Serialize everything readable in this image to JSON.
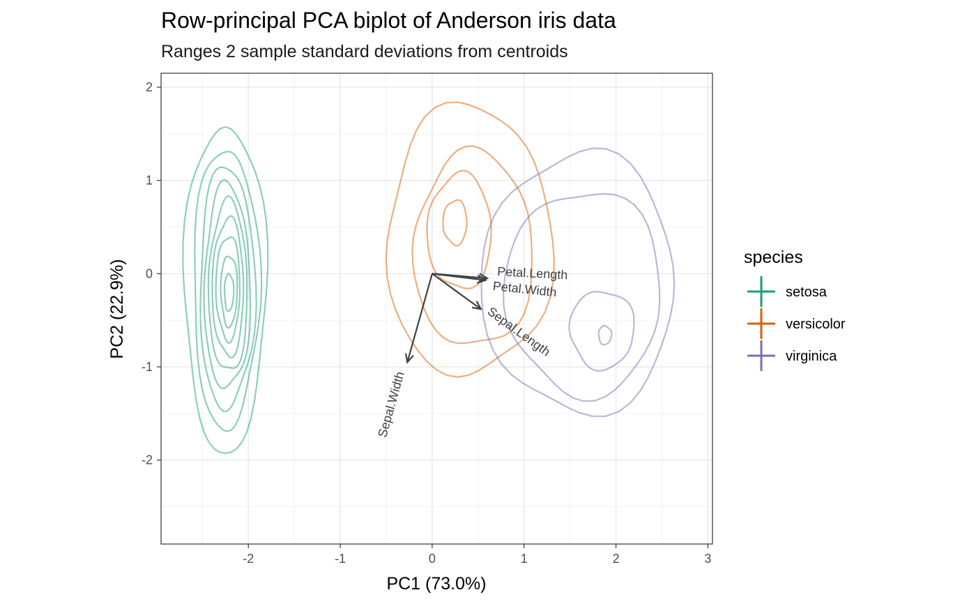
{
  "chart_data": {
    "type": "biplot",
    "title": "Row-principal PCA biplot of Anderson iris data",
    "subtitle": "Ranges 2 sample standard deviations from centroids",
    "xlabel": "PC1 (73.0%)",
    "ylabel": "PC2 (22.9%)",
    "xlim": [
      -2.95,
      3.05
    ],
    "ylim": [
      -2.9,
      2.15
    ],
    "x_ticks": [
      -2,
      -1,
      0,
      1,
      2,
      3
    ],
    "y_ticks": [
      -2,
      -1,
      0,
      1,
      2
    ],
    "x_tick_labels": [
      "-2",
      "-1",
      "0",
      "1",
      "2",
      "3"
    ],
    "y_tick_labels": [
      "-2",
      "-1",
      "0",
      "1",
      "2"
    ],
    "grid": true,
    "legend": {
      "title": "species",
      "position": "right",
      "entries": [
        {
          "label": "setosa",
          "color": "#1b9e77"
        },
        {
          "label": "versicolor",
          "color": "#d95f02"
        },
        {
          "label": "virginica",
          "color": "#7570b3"
        }
      ]
    },
    "density_contours": [
      {
        "group": "setosa",
        "color": "#1b9e77",
        "levels": [
          {
            "cx": -2.25,
            "cy": -0.15,
            "rx": 0.45,
            "ry": 1.75
          },
          {
            "cx": -2.24,
            "cy": -0.15,
            "rx": 0.36,
            "ry": 1.5
          },
          {
            "cx": -2.23,
            "cy": -0.15,
            "rx": 0.3,
            "ry": 1.3
          },
          {
            "cx": -2.23,
            "cy": -0.15,
            "rx": 0.25,
            "ry": 1.1
          },
          {
            "cx": -2.22,
            "cy": -0.15,
            "rx": 0.21,
            "ry": 0.92
          },
          {
            "cx": -2.22,
            "cy": -0.15,
            "rx": 0.17,
            "ry": 0.74
          },
          {
            "cx": -2.22,
            "cy": -0.15,
            "rx": 0.13,
            "ry": 0.56
          },
          {
            "cx": -2.21,
            "cy": -0.18,
            "rx": 0.09,
            "ry": 0.38
          },
          {
            "cx": -2.21,
            "cy": -0.2,
            "rx": 0.05,
            "ry": 0.2
          }
        ]
      },
      {
        "group": "versicolor",
        "color": "#d95f02",
        "levels": [
          {
            "cx": 0.4,
            "cy": 0.35,
            "rx": 0.9,
            "ry": 1.45
          },
          {
            "cx": 0.45,
            "cy": 0.25,
            "rx": 0.65,
            "ry": 1.05
          },
          {
            "cx": 0.3,
            "cy": 0.45,
            "rx": 0.35,
            "ry": 0.62
          },
          {
            "cx": 0.25,
            "cy": 0.55,
            "rx": 0.13,
            "ry": 0.24
          }
        ]
      },
      {
        "group": "virginica",
        "color": "#7570b3",
        "levels": [
          {
            "cx": 1.6,
            "cy": -0.1,
            "rx": 1.05,
            "ry": 1.4
          },
          {
            "cx": 1.65,
            "cy": -0.2,
            "rx": 0.85,
            "ry": 1.1
          },
          {
            "cx": 1.85,
            "cy": -0.6,
            "rx": 0.35,
            "ry": 0.42
          },
          {
            "cx": 1.88,
            "cy": -0.66,
            "rx": 0.07,
            "ry": 0.1
          }
        ]
      }
    ],
    "variable_arrows": [
      {
        "label": "Petal.Length",
        "x": 0.6,
        "y": -0.05
      },
      {
        "label": "Petal.Width",
        "x": 0.58,
        "y": -0.07
      },
      {
        "label": "Sepal.Length",
        "x": 0.53,
        "y": -0.38
      },
      {
        "label": "Sepal.Width",
        "x": -0.27,
        "y": -0.95
      }
    ]
  }
}
